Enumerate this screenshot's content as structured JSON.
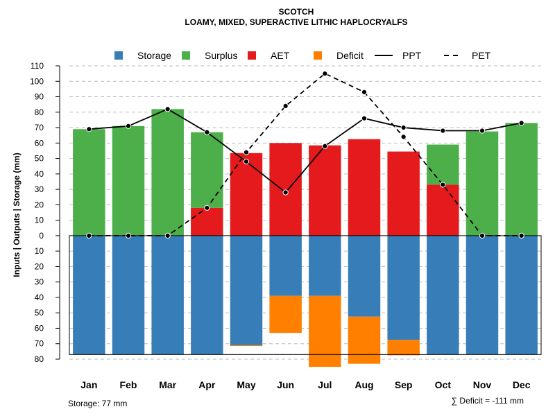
{
  "chart_data": {
    "type": "bar",
    "title": "SCOTCH",
    "subtitle": "LOAMY, MIXED, SUPERACTIVE LITHIC HAPLOCRYALFS",
    "ylabel": "Inputs | Outputs | Storage     (mm)",
    "categories": [
      "Jan",
      "Feb",
      "Mar",
      "Apr",
      "May",
      "Jun",
      "Jul",
      "Aug",
      "Sep",
      "Oct",
      "Nov",
      "Dec"
    ],
    "ylim": [
      -80,
      110
    ],
    "y_ticks": [
      110,
      100,
      90,
      80,
      70,
      60,
      50,
      40,
      30,
      20,
      10,
      0,
      -10,
      -20,
      -30,
      -40,
      -50,
      -60,
      -70,
      -80
    ],
    "y_tick_labels": [
      "110",
      "100",
      "90",
      "80",
      "70",
      "60",
      "50",
      "40",
      "30",
      "20",
      "10",
      "0",
      "10",
      "20",
      "30",
      "40",
      "50",
      "60",
      "70",
      "80"
    ],
    "grid": true,
    "legend": [
      "Storage",
      "Surplus",
      "AET",
      "Deficit",
      "PPT",
      "PET"
    ],
    "legend_position": "top",
    "colors": {
      "storage": "#377EB8",
      "surplus": "#4DAF4A",
      "aet": "#E41A1C",
      "deficit": "#FF7F00",
      "line": "#000000",
      "grid": "#bbbbbb"
    },
    "series": [
      {
        "name": "Storage",
        "values": [
          77,
          77,
          77,
          77,
          71,
          39,
          39,
          52.5,
          67.5,
          77,
          77,
          77
        ]
      },
      {
        "name": "Surplus",
        "values": [
          69,
          71,
          82,
          49,
          0,
          0,
          0,
          0,
          0,
          26,
          67.5,
          73
        ]
      },
      {
        "name": "AET",
        "values": [
          0,
          0,
          0,
          18,
          53.5,
          60,
          58.5,
          62.5,
          54.5,
          33,
          0,
          0
        ]
      },
      {
        "name": "Deficit",
        "values": [
          0,
          0,
          0,
          0,
          0.5,
          24,
          46,
          30.5,
          10,
          0,
          0,
          0
        ]
      },
      {
        "name": "PPT",
        "values": [
          69,
          71,
          82,
          67,
          48,
          28,
          58,
          76,
          70,
          68,
          68,
          73
        ]
      },
      {
        "name": "PET",
        "values": [
          0,
          0,
          0,
          18,
          54,
          84,
          105,
          93,
          64,
          33,
          0,
          0
        ]
      }
    ],
    "storage_capacity": 77,
    "storage_note": "Storage: 77 mm",
    "deficit_note": "∑ Deficit = -111 mm"
  }
}
